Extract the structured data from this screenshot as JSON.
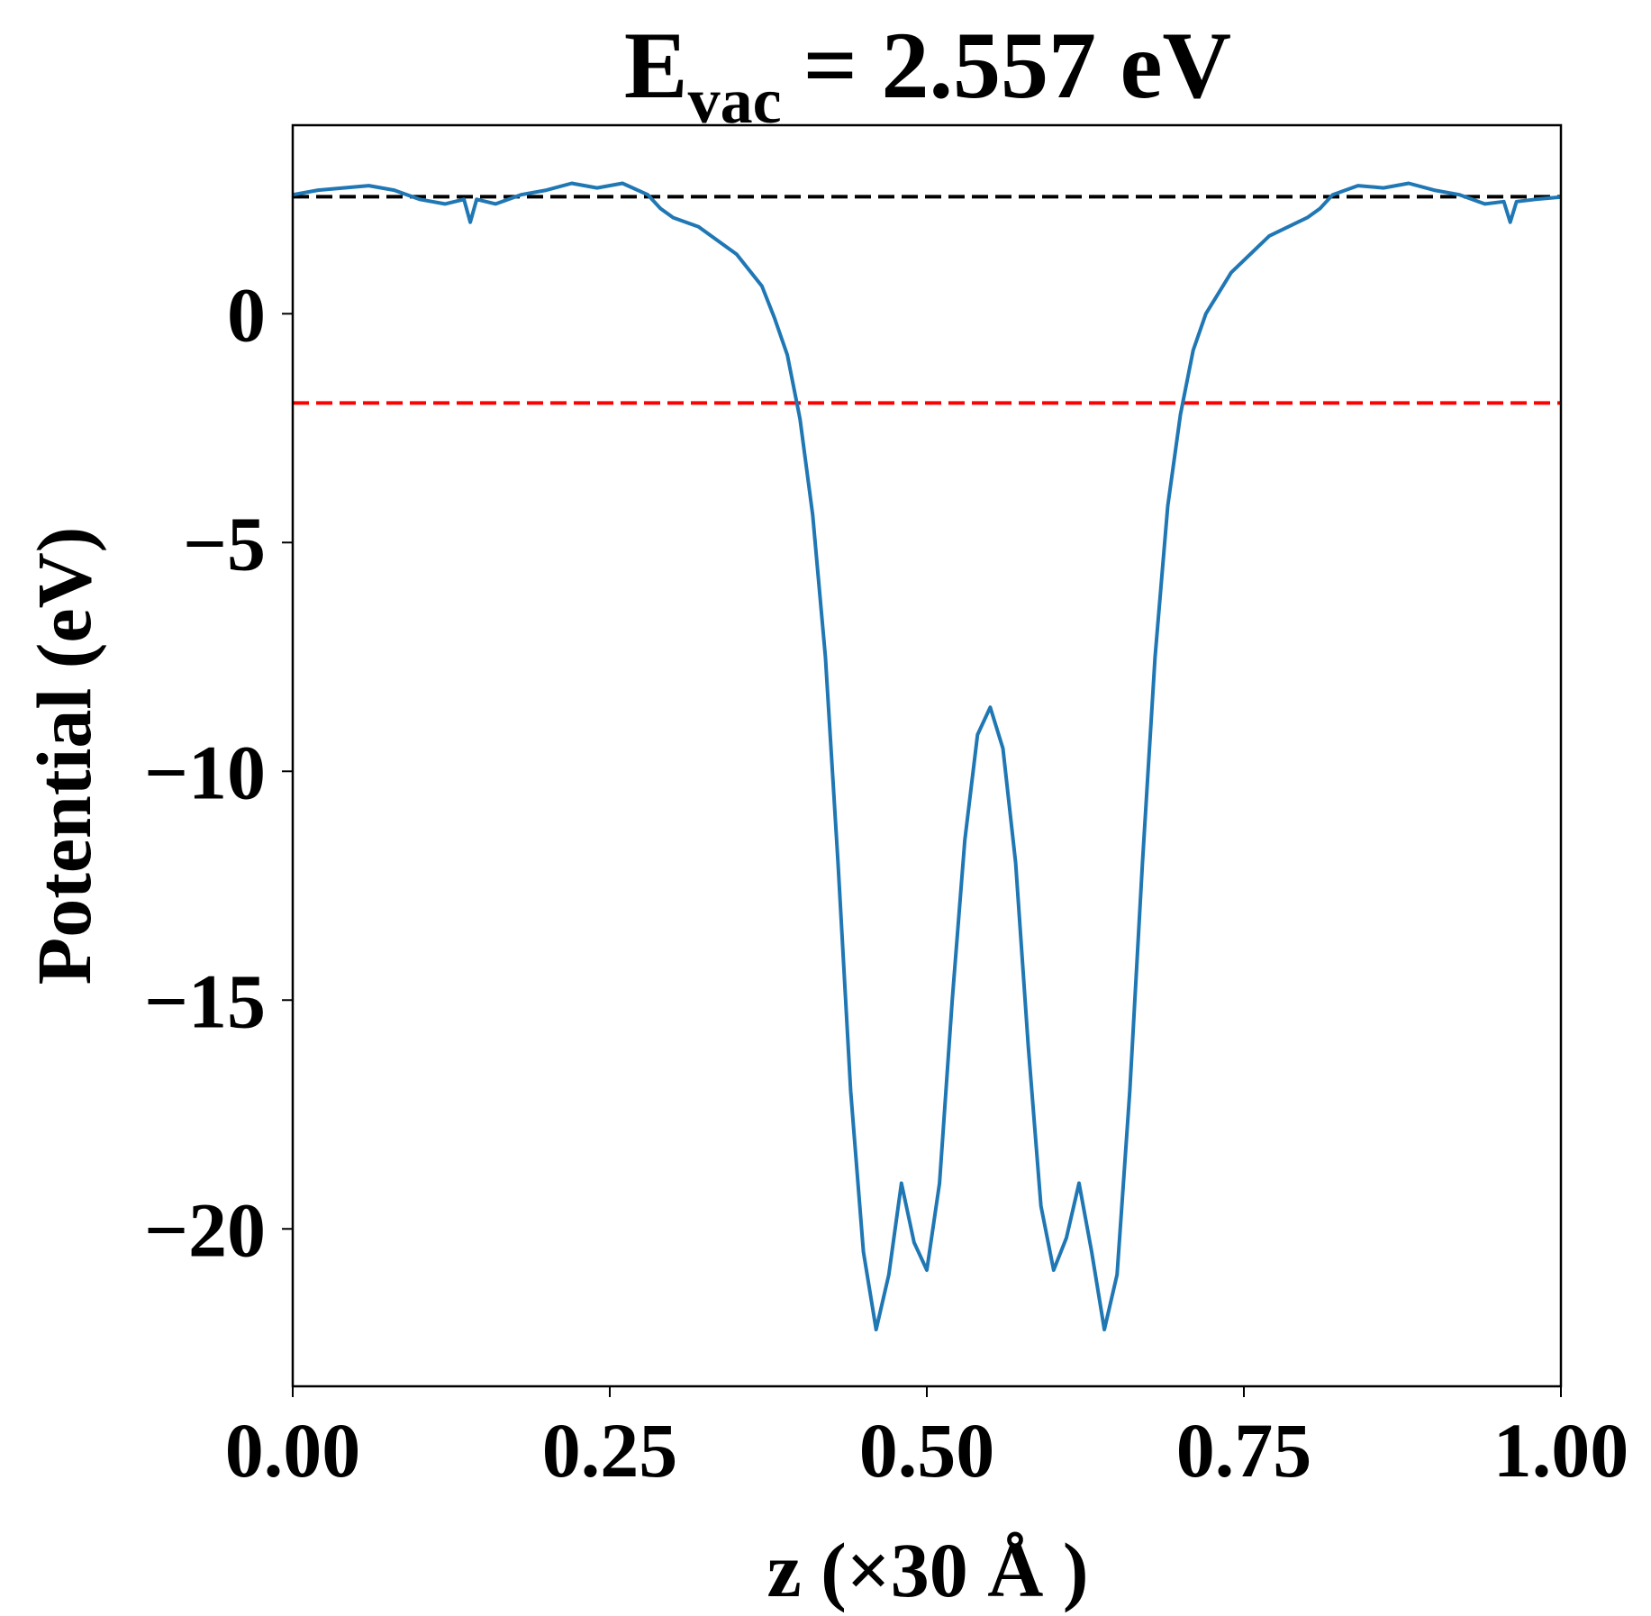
{
  "chart_data": {
    "type": "line",
    "title": [
      "E",
      "vac",
      "= 2.557 eV"
    ],
    "x_label": "z (×30 Å )",
    "y_label": "Potential (eV)",
    "xlim": [
      0,
      1
    ],
    "ylim": [
      -23.44,
      4.12
    ],
    "xticks": [
      {
        "value": 0,
        "label": "0.00"
      },
      {
        "value": 0.25,
        "label": "0.25"
      },
      {
        "value": 0.5,
        "label": "0.50"
      },
      {
        "value": 0.75,
        "label": "0.75"
      },
      {
        "value": 1,
        "label": "1.00"
      }
    ],
    "yticks": [
      0,
      {
        "value": -5,
        "label": "−5"
      },
      {
        "value": -10,
        "label": "−10"
      },
      {
        "value": -15,
        "label": "−15"
      },
      {
        "value": -20,
        "label": "−20"
      }
    ],
    "hlines": [
      {
        "y": 2.557,
        "color": "#000000"
      },
      {
        "y": -1.95,
        "color": "#ff0000"
      }
    ],
    "series": [
      {
        "color": "#1f77b4",
        "x": [
          0,
          0.02,
          0.04,
          0.06,
          0.08,
          0.1,
          0.12,
          0.135,
          0.14,
          0.145,
          0.16,
          0.18,
          0.2,
          0.22,
          0.24,
          0.26,
          0.28,
          0.29,
          0.3,
          0.32,
          0.35,
          0.37,
          0.38,
          0.39,
          0.4,
          0.41,
          0.42,
          0.43,
          0.44,
          0.45,
          0.46,
          0.47,
          0.48,
          0.49,
          0.5,
          0.51,
          0.52,
          0.53,
          0.54,
          0.55,
          0.56,
          0.57,
          0.58,
          0.59,
          0.6,
          0.61,
          0.62,
          0.63,
          0.64,
          0.65,
          0.66,
          0.67,
          0.68,
          0.69,
          0.7,
          0.71,
          0.72,
          0.74,
          0.77,
          0.8,
          0.81,
          0.82,
          0.84,
          0.86,
          0.88,
          0.9,
          0.92,
          0.94,
          0.955,
          0.96,
          0.965,
          0.98,
          1
        ],
        "values": [
          2.6,
          2.7,
          2.75,
          2.8,
          2.7,
          2.5,
          2.4,
          2.5,
          2.0,
          2.5,
          2.4,
          2.6,
          2.7,
          2.85,
          2.75,
          2.85,
          2.6,
          2.3,
          2.1,
          1.9,
          1.3,
          0.6,
          -0.1,
          -0.9,
          -2.3,
          -4.4,
          -7.5,
          -12,
          -17,
          -20.5,
          -22.2,
          -21,
          -19,
          -20.3,
          -20.9,
          -19,
          -15,
          -11.5,
          -9.2,
          -8.6,
          -9.5,
          -12,
          -16,
          -19.5,
          -20.9,
          -20.2,
          -19,
          -20.5,
          -22.2,
          -21,
          -17,
          -12,
          -7.5,
          -4.2,
          -2.2,
          -0.8,
          0,
          0.9,
          1.7,
          2.1,
          2.3,
          2.6,
          2.8,
          2.75,
          2.85,
          2.7,
          2.6,
          2.4,
          2.45,
          2.0,
          2.45,
          2.5,
          2.55
        ]
      }
    ]
  }
}
